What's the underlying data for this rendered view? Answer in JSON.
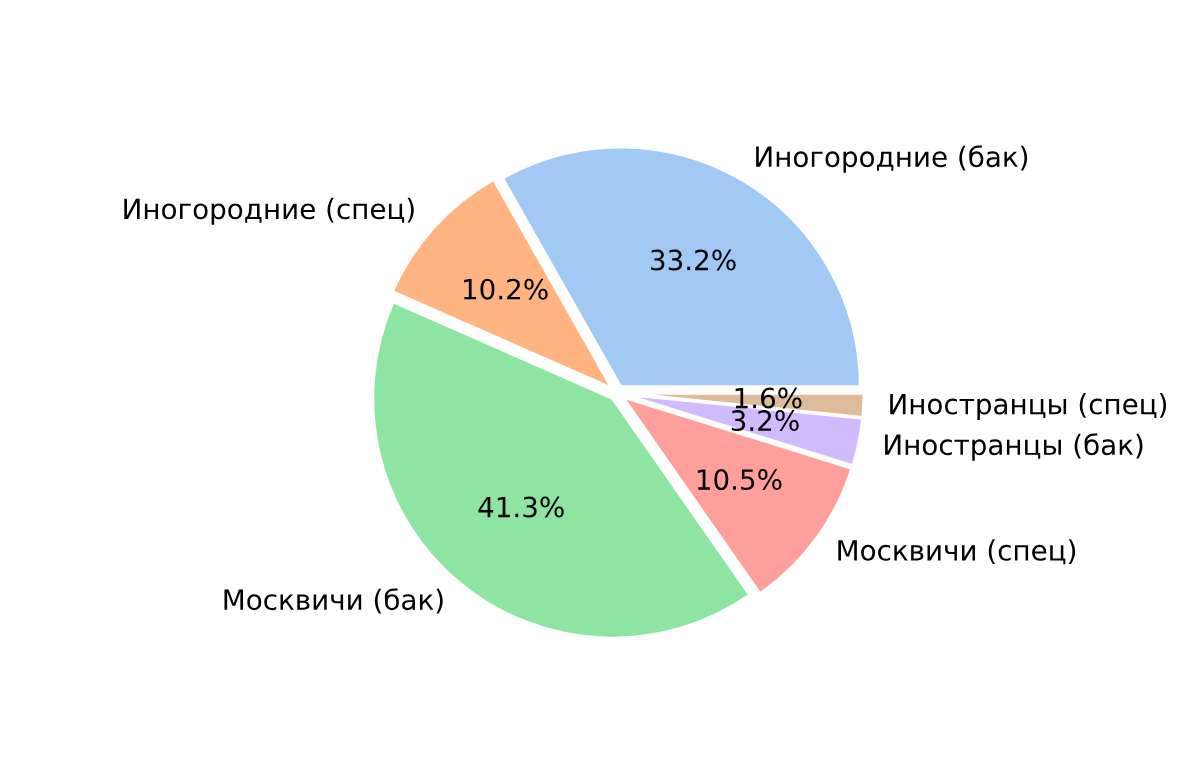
{
  "chart_data": {
    "type": "pie",
    "categories": [
      "Иногородние (бак)",
      "Иногородние (спец)",
      "Москвичи (бак)",
      "Москвичи (спец)",
      "Иностранцы (бак)",
      "Иностранцы (спец)"
    ],
    "values": [
      33.2,
      10.2,
      41.3,
      10.5,
      3.2,
      1.6
    ],
    "value_labels": [
      "33.2%",
      "10.2%",
      "41.3%",
      "10.5%",
      "3.2%",
      "1.6%"
    ],
    "colors": [
      "#a1c9f4",
      "#ffb482",
      "#8de5a1",
      "#ff9f9b",
      "#d0bbff",
      "#debb9b"
    ],
    "legend": false
  }
}
